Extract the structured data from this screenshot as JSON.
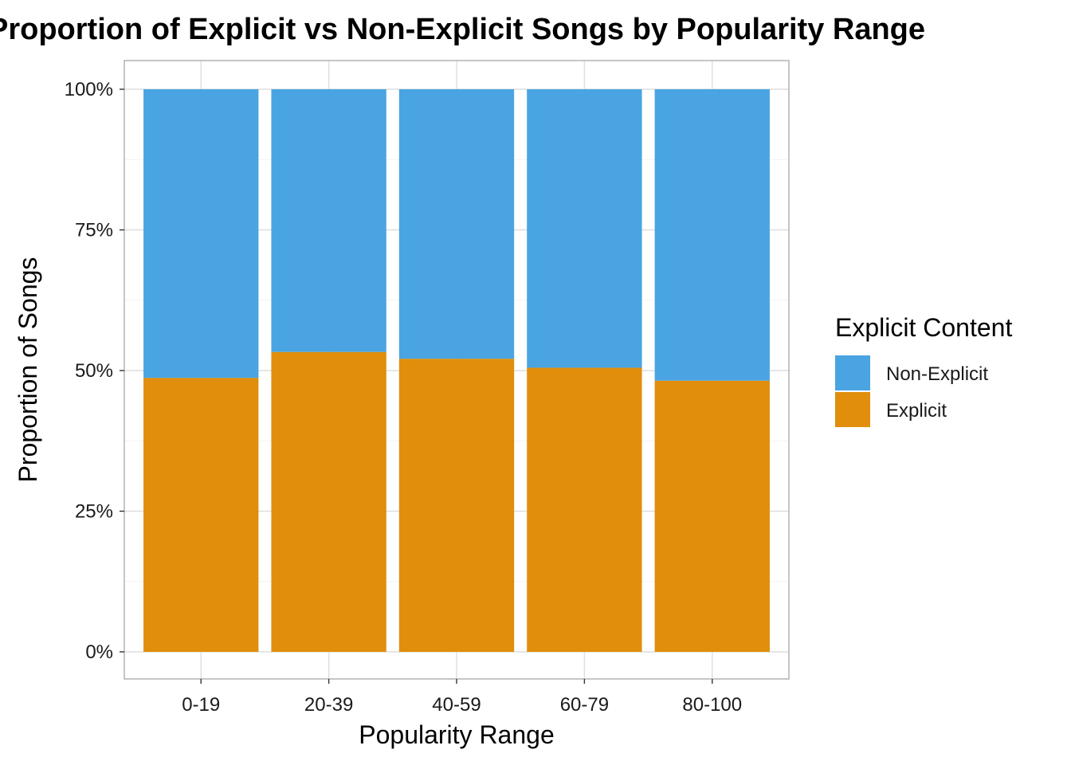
{
  "chart_data": {
    "type": "bar",
    "stacked": true,
    "title": "Proportion of Explicit vs Non-Explicit Songs by Popularity Range",
    "xlabel": "Popularity Range",
    "ylabel": "Proportion of Songs",
    "categories": [
      "0-19",
      "20-39",
      "40-59",
      "60-79",
      "80-100"
    ],
    "series": [
      {
        "name": "Explicit",
        "values": [
          0.487,
          0.533,
          0.521,
          0.505,
          0.482
        ],
        "color": "#E08E0B"
      },
      {
        "name": "Non-Explicit",
        "values": [
          0.513,
          0.467,
          0.479,
          0.495,
          0.518
        ],
        "color": "#4AA4E2"
      }
    ],
    "ylim": [
      0,
      1
    ],
    "yticks": [
      0,
      0.25,
      0.5,
      0.75,
      1
    ],
    "ytick_labels": [
      "0%",
      "25%",
      "50%",
      "75%",
      "100%"
    ],
    "grid": true,
    "legend": {
      "title": "Explicit Content",
      "placement": "right",
      "order": [
        "Non-Explicit",
        "Explicit"
      ]
    }
  }
}
